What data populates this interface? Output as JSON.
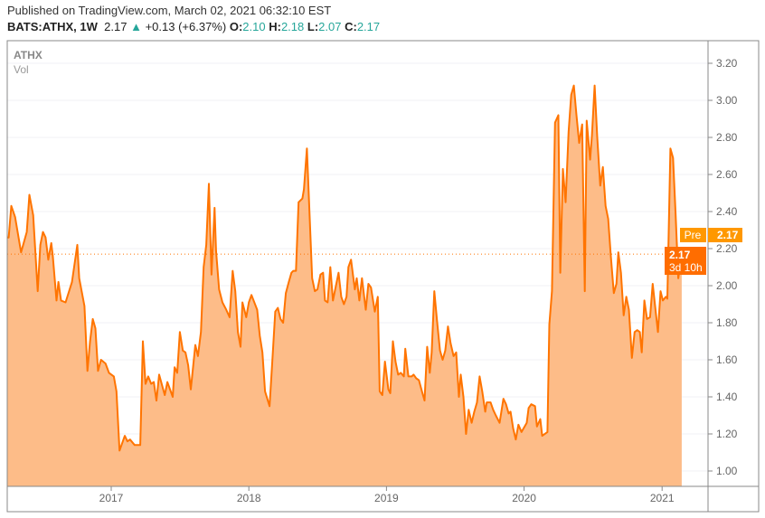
{
  "header": {
    "published": "Published on TradingView.com, March 02, 2021 06:32:10 EST",
    "symbol": "BATS:ATHX, 1W",
    "last": "2.17",
    "change_icon": "triangle-up-icon",
    "change": "+0.13 (+6.37%)",
    "o_label": "O:",
    "o": "2.10",
    "h_label": "H:",
    "h": "2.18",
    "l_label": "L:",
    "l": "2.07",
    "c_label": "C:",
    "c": "2.17"
  },
  "legend": {
    "symbol": "ATHX",
    "volume": "Vol"
  },
  "price_labels": {
    "pre_tag": "Pre",
    "pre_price": "2.17",
    "last_price": "2.17",
    "countdown": "3d 10h"
  },
  "colors": {
    "line": "#ff7400",
    "fill": "#fdbc88",
    "pre": "#ff9800",
    "last": "#ff6d00",
    "up": "#26a69a"
  },
  "chart_data": {
    "type": "area",
    "title": "",
    "xlabel": "",
    "ylabel": "",
    "x_ticks": [
      "2017",
      "2018",
      "2019",
      "2020",
      "2021"
    ],
    "y_ticks": [
      "1.00",
      "1.20",
      "1.40",
      "1.60",
      "1.80",
      "2.00",
      "2.20",
      "2.40",
      "2.60",
      "2.80",
      "3.00",
      "3.20"
    ],
    "ylim": [
      0.92,
      3.32
    ],
    "grid": true,
    "series": [
      {
        "points": [
          [
            "2016-03-28",
            2.26
          ],
          [
            "2016-04-04",
            2.26
          ],
          [
            "2016-04-11",
            2.43
          ],
          [
            "2016-04-21",
            2.37
          ],
          [
            "2016-05-07",
            2.18
          ],
          [
            "2016-05-22",
            2.29
          ],
          [
            "2016-05-29",
            2.49
          ],
          [
            "2016-06-08",
            2.38
          ],
          [
            "2016-06-20",
            1.97
          ],
          [
            "2016-06-27",
            2.22
          ],
          [
            "2016-07-04",
            2.29
          ],
          [
            "2016-07-11",
            2.26
          ],
          [
            "2016-07-18",
            2.14
          ],
          [
            "2016-07-26",
            2.23
          ],
          [
            "2016-07-30",
            2.16
          ],
          [
            "2016-08-09",
            1.92
          ],
          [
            "2016-08-14",
            2.02
          ],
          [
            "2016-08-21",
            1.92
          ],
          [
            "2016-09-02",
            1.91
          ],
          [
            "2016-09-19",
            2.02
          ],
          [
            "2016-10-03",
            2.22
          ],
          [
            "2016-10-08",
            2.04
          ],
          [
            "2016-10-22",
            1.89
          ],
          [
            "2016-10-30",
            1.54
          ],
          [
            "2016-11-06",
            1.7
          ],
          [
            "2016-11-13",
            1.82
          ],
          [
            "2016-11-20",
            1.77
          ],
          [
            "2016-11-27",
            1.54
          ],
          [
            "2016-12-05",
            1.6
          ],
          [
            "2016-12-17",
            1.58
          ],
          [
            "2016-12-26",
            1.53
          ],
          [
            "2017-01-08",
            1.51
          ],
          [
            "2017-01-15",
            1.43
          ],
          [
            "2017-01-23",
            1.11
          ],
          [
            "2017-02-06",
            1.19
          ],
          [
            "2017-02-13",
            1.16
          ],
          [
            "2017-02-20",
            1.17
          ],
          [
            "2017-03-04",
            1.14
          ],
          [
            "2017-03-19",
            1.14
          ],
          [
            "2017-03-26",
            1.7
          ],
          [
            "2017-04-02",
            1.47
          ],
          [
            "2017-04-09",
            1.51
          ],
          [
            "2017-04-17",
            1.47
          ],
          [
            "2017-04-24",
            1.48
          ],
          [
            "2017-05-01",
            1.38
          ],
          [
            "2017-05-08",
            1.52
          ],
          [
            "2017-05-23",
            1.41
          ],
          [
            "2017-05-30",
            1.48
          ],
          [
            "2017-06-13",
            1.4
          ],
          [
            "2017-06-18",
            1.56
          ],
          [
            "2017-06-25",
            1.53
          ],
          [
            "2017-07-02",
            1.75
          ],
          [
            "2017-07-10",
            1.65
          ],
          [
            "2017-07-17",
            1.64
          ],
          [
            "2017-07-24",
            1.57
          ],
          [
            "2017-07-31",
            1.44
          ],
          [
            "2017-08-12",
            1.68
          ],
          [
            "2017-08-19",
            1.62
          ],
          [
            "2017-08-27",
            1.75
          ],
          [
            "2017-09-03",
            2.1
          ],
          [
            "2017-09-10",
            2.22
          ],
          [
            "2017-09-17",
            2.55
          ],
          [
            "2017-09-24",
            2.06
          ],
          [
            "2017-10-02",
            2.42
          ],
          [
            "2017-10-06",
            2.19
          ],
          [
            "2017-10-14",
            1.98
          ],
          [
            "2017-10-23",
            1.91
          ],
          [
            "2017-11-02",
            1.87
          ],
          [
            "2017-11-11",
            1.83
          ],
          [
            "2017-11-19",
            2.08
          ],
          [
            "2017-11-26",
            1.97
          ],
          [
            "2017-12-03",
            1.75
          ],
          [
            "2017-12-10",
            1.67
          ],
          [
            "2017-12-15",
            1.91
          ],
          [
            "2017-12-25",
            1.83
          ],
          [
            "2018-01-01",
            1.91
          ],
          [
            "2018-01-08",
            1.95
          ],
          [
            "2018-01-23",
            1.87
          ],
          [
            "2018-01-30",
            1.73
          ],
          [
            "2018-02-06",
            1.64
          ],
          [
            "2018-02-13",
            1.43
          ],
          [
            "2018-02-25",
            1.35
          ],
          [
            "2018-03-04",
            1.58
          ],
          [
            "2018-03-12",
            1.86
          ],
          [
            "2018-03-19",
            1.88
          ],
          [
            "2018-03-26",
            1.82
          ],
          [
            "2018-04-02",
            1.8
          ],
          [
            "2018-04-09",
            1.96
          ],
          [
            "2018-04-17",
            2.02
          ],
          [
            "2018-04-24",
            2.07
          ],
          [
            "2018-04-29",
            2.08
          ],
          [
            "2018-05-06",
            2.08
          ],
          [
            "2018-05-13",
            2.45
          ],
          [
            "2018-05-23",
            2.47
          ],
          [
            "2018-05-27",
            2.52
          ],
          [
            "2018-06-04",
            2.74
          ],
          [
            "2018-06-11",
            2.39
          ],
          [
            "2018-06-18",
            2.04
          ],
          [
            "2018-06-25",
            1.97
          ],
          [
            "2018-07-02",
            1.98
          ],
          [
            "2018-07-10",
            2.06
          ],
          [
            "2018-07-17",
            2.07
          ],
          [
            "2018-07-22",
            1.92
          ],
          [
            "2018-07-29",
            1.91
          ],
          [
            "2018-08-05",
            2.1
          ],
          [
            "2018-08-12",
            1.92
          ],
          [
            "2018-08-27",
            2.07
          ],
          [
            "2018-09-03",
            1.94
          ],
          [
            "2018-09-10",
            1.9
          ],
          [
            "2018-09-17",
            1.94
          ],
          [
            "2018-09-22",
            2.1
          ],
          [
            "2018-09-29",
            2.14
          ],
          [
            "2018-10-09",
            1.98
          ],
          [
            "2018-10-14",
            2.04
          ],
          [
            "2018-10-21",
            1.92
          ],
          [
            "2018-10-28",
            2.04
          ],
          [
            "2018-11-07",
            1.87
          ],
          [
            "2018-11-14",
            2.01
          ],
          [
            "2018-11-21",
            1.99
          ],
          [
            "2018-12-01",
            1.86
          ],
          [
            "2018-12-09",
            1.94
          ],
          [
            "2018-12-14",
            1.43
          ],
          [
            "2018-12-21",
            1.41
          ],
          [
            "2018-12-28",
            1.59
          ],
          [
            "2019-01-06",
            1.44
          ],
          [
            "2019-01-11",
            1.42
          ],
          [
            "2019-01-18",
            1.7
          ],
          [
            "2019-01-25",
            1.59
          ],
          [
            "2019-02-01",
            1.52
          ],
          [
            "2019-02-08",
            1.53
          ],
          [
            "2019-02-16",
            1.51
          ],
          [
            "2019-02-20",
            1.66
          ],
          [
            "2019-02-28",
            1.51
          ],
          [
            "2019-03-09",
            1.51
          ],
          [
            "2019-03-14",
            1.52
          ],
          [
            "2019-03-21",
            1.5
          ],
          [
            "2019-03-28",
            1.49
          ],
          [
            "2019-04-05",
            1.43
          ],
          [
            "2019-04-12",
            1.38
          ],
          [
            "2019-04-19",
            1.67
          ],
          [
            "2019-04-26",
            1.53
          ],
          [
            "2019-05-01",
            1.64
          ],
          [
            "2019-05-08",
            1.97
          ],
          [
            "2019-05-15",
            1.81
          ],
          [
            "2019-05-23",
            1.65
          ],
          [
            "2019-05-30",
            1.6
          ],
          [
            "2019-06-06",
            1.65
          ],
          [
            "2019-06-13",
            1.78
          ],
          [
            "2019-06-20",
            1.69
          ],
          [
            "2019-06-28",
            1.62
          ],
          [
            "2019-07-05",
            1.64
          ],
          [
            "2019-07-12",
            1.4
          ],
          [
            "2019-07-17",
            1.52
          ],
          [
            "2019-07-24",
            1.4
          ],
          [
            "2019-07-31",
            1.2
          ],
          [
            "2019-08-07",
            1.33
          ],
          [
            "2019-08-15",
            1.26
          ],
          [
            "2019-08-22",
            1.32
          ],
          [
            "2019-08-29",
            1.37
          ],
          [
            "2019-09-05",
            1.51
          ],
          [
            "2019-09-12",
            1.43
          ],
          [
            "2019-09-20",
            1.32
          ],
          [
            "2019-09-24",
            1.37
          ],
          [
            "2019-10-04",
            1.37
          ],
          [
            "2019-10-11",
            1.33
          ],
          [
            "2019-10-18",
            1.3
          ],
          [
            "2019-10-28",
            1.26
          ],
          [
            "2019-11-07",
            1.39
          ],
          [
            "2019-11-14",
            1.36
          ],
          [
            "2019-11-21",
            1.31
          ],
          [
            "2019-11-26",
            1.32
          ],
          [
            "2019-12-03",
            1.23
          ],
          [
            "2019-12-10",
            1.17
          ],
          [
            "2019-12-17",
            1.25
          ],
          [
            "2019-12-25",
            1.21
          ],
          [
            "2020-01-08",
            1.26
          ],
          [
            "2020-01-13",
            1.34
          ],
          [
            "2020-01-20",
            1.36
          ],
          [
            "2020-01-30",
            1.35
          ],
          [
            "2020-02-04",
            1.24
          ],
          [
            "2020-02-13",
            1.28
          ],
          [
            "2020-02-18",
            1.19
          ],
          [
            "2020-03-03",
            1.21
          ],
          [
            "2020-03-08",
            1.79
          ],
          [
            "2020-03-15",
            1.97
          ],
          [
            "2020-03-23",
            2.88
          ],
          [
            "2020-04-01",
            2.92
          ],
          [
            "2020-04-06",
            2.07
          ],
          [
            "2020-04-13",
            2.63
          ],
          [
            "2020-04-20",
            2.45
          ],
          [
            "2020-04-28",
            2.83
          ],
          [
            "2020-05-05",
            3.03
          ],
          [
            "2020-05-12",
            3.08
          ],
          [
            "2020-05-19",
            2.92
          ],
          [
            "2020-05-26",
            2.77
          ],
          [
            "2020-06-03",
            2.87
          ],
          [
            "2020-06-10",
            1.97
          ],
          [
            "2020-06-15",
            2.89
          ],
          [
            "2020-06-24",
            2.68
          ],
          [
            "2020-06-29",
            2.81
          ],
          [
            "2020-07-06",
            3.08
          ],
          [
            "2020-07-13",
            2.8
          ],
          [
            "2020-07-21",
            2.54
          ],
          [
            "2020-07-28",
            2.64
          ],
          [
            "2020-08-04",
            2.43
          ],
          [
            "2020-08-11",
            2.36
          ],
          [
            "2020-08-18",
            2.16
          ],
          [
            "2020-08-26",
            1.96
          ],
          [
            "2020-09-02",
            2.01
          ],
          [
            "2020-09-07",
            2.18
          ],
          [
            "2020-09-14",
            2.07
          ],
          [
            "2020-09-21",
            1.84
          ],
          [
            "2020-09-28",
            1.94
          ],
          [
            "2020-10-05",
            1.87
          ],
          [
            "2020-10-13",
            1.61
          ],
          [
            "2020-10-20",
            1.75
          ],
          [
            "2020-10-27",
            1.76
          ],
          [
            "2020-11-03",
            1.75
          ],
          [
            "2020-11-08",
            1.64
          ],
          [
            "2020-11-15",
            1.92
          ],
          [
            "2020-11-22",
            1.82
          ],
          [
            "2020-11-30",
            1.83
          ],
          [
            "2020-12-07",
            2.01
          ],
          [
            "2020-12-14",
            1.88
          ],
          [
            "2020-12-21",
            1.75
          ],
          [
            "2020-12-28",
            1.97
          ],
          [
            "2021-01-03",
            1.92
          ],
          [
            "2021-01-11",
            1.94
          ],
          [
            "2021-01-15",
            1.93
          ],
          [
            "2021-01-23",
            2.74
          ],
          [
            "2021-01-30",
            2.69
          ],
          [
            "2021-02-06",
            2.38
          ],
          [
            "2021-02-13",
            2.04
          ],
          [
            "2021-02-22",
            2.17
          ]
        ]
      }
    ],
    "last_value": 2.17
  }
}
